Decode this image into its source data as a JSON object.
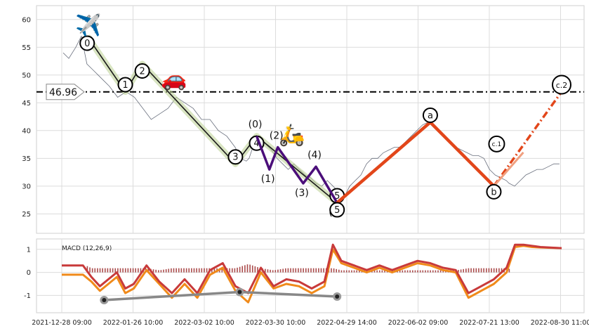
{
  "chart_data": [
    {
      "type": "line",
      "panel": "price",
      "x_ticks": [
        "2021-12-28 09:00",
        "2022-01-26 10:00",
        "2022-03-02 10:00",
        "2022-03-30 10:00",
        "2022-04-29 14:00",
        "2022-06-02 09:00",
        "2022-07-21 13:00",
        "2022-08-30 11:00"
      ],
      "y_ticks": [
        25,
        30,
        35,
        40,
        45,
        50,
        55,
        60
      ],
      "ylim": [
        21.5,
        62.5
      ],
      "grid": true,
      "price_series": {
        "segments": [
          {
            "x": [
              1,
              5,
              10,
              14,
              18,
              22,
              26,
              30,
              34,
              40,
              46,
              52,
              58,
              64,
              70,
              76,
              82,
              88,
              94,
              100,
              106,
              112,
              118,
              124,
              128,
              132,
              134,
              138,
              142,
              146,
              150,
              154,
              158,
              162,
              166,
              170,
              174,
              178,
              182,
              186,
              190,
              194,
              198,
              202,
              206,
              210,
              214,
              218,
              222,
              226,
              230,
              234,
              238,
              242,
              246,
              250,
              254,
              258,
              262,
              266,
              270,
              274,
              278,
              282,
              286,
              290,
              294,
              298,
              302,
              306,
              310,
              314,
              318,
              320,
              324,
              328,
              332,
              336,
              340,
              344,
              348,
              352,
              356
            ],
            "y": [
              54,
              53,
              55,
              57,
              52,
              51,
              50,
              49,
              48,
              46,
              47,
              46,
              44,
              42,
              43,
              44,
              46,
              45,
              44,
              42,
              42,
              40,
              39,
              37,
              35,
              34.5,
              35,
              38,
              39,
              37.5,
              36.5,
              35,
              34,
              33,
              34,
              33,
              32,
              31.5,
              30.5,
              30,
              31,
              30,
              29,
              28,
              30,
              31,
              32,
              34,
              35,
              35,
              36,
              36.5,
              37,
              37,
              38,
              39,
              40,
              41,
              41.5,
              41,
              40,
              39,
              38,
              37,
              36.5,
              36,
              35.5,
              35.5,
              35,
              33,
              32,
              31.5,
              31,
              30.5,
              30,
              31,
              32,
              32.5,
              33,
              33,
              33.5,
              34,
              34
            ]
          }
        ]
      },
      "horizontal_level": {
        "value": 46.96,
        "label": "46.96"
      },
      "waves": [
        {
          "name": "primary",
          "color": "#1a1a1a",
          "points": [
            [
              12,
              57
            ],
            [
              30,
              47
            ],
            [
              38,
              52
            ],
            [
              82,
              34
            ],
            [
              92,
              39
            ],
            [
              130,
              27
            ]
          ],
          "labels": [
            "0",
            "1",
            "2",
            "3",
            "4",
            "5"
          ]
        },
        {
          "name": "sub",
          "color": "#4b0e7a",
          "points": [
            [
              92,
              39
            ],
            [
              98,
              33
            ],
            [
              102,
              37
            ],
            [
              114,
              30.5
            ],
            [
              120,
              33.5
            ],
            [
              130,
              27
            ]
          ],
          "labels": [
            "(0)",
            "(1)",
            "(2)",
            "(3)",
            "(4)",
            "(5)"
          ]
        },
        {
          "name": "corrective",
          "color": "#e2461a",
          "points": [
            [
              130,
              27
            ],
            [
              174,
              41.5
            ],
            [
              204,
              30
            ],
            [
              236,
              47
            ]
          ],
          "labels": [
            "5",
            "a",
            "b",
            "c.2"
          ],
          "extra_labels": [
            "c.1"
          ]
        }
      ],
      "emoji_markers": [
        "✈️",
        "🚗",
        "🛵"
      ]
    },
    {
      "type": "line",
      "panel": "indicator",
      "title": "MACD (12,26,9)",
      "y_ticks": [
        -1,
        0,
        1
      ],
      "ylim": [
        -1.75,
        1.45
      ],
      "grid": true,
      "macd_line": {
        "x": [
          0,
          10,
          14,
          18,
          22,
          26,
          30,
          34,
          40,
          46,
          52,
          58,
          64,
          70,
          76,
          82,
          88,
          94,
          100,
          106,
          112,
          118,
          124,
          128,
          132,
          138,
          144,
          150,
          156,
          162,
          168,
          174,
          180,
          186,
          192,
          198,
          204,
          210,
          214,
          218,
          222,
          226,
          236
        ],
        "y": [
          0.3,
          0.3,
          -0.2,
          -0.6,
          -0.3,
          0.0,
          -0.7,
          -0.5,
          0.3,
          -0.4,
          -0.9,
          -0.3,
          -0.9,
          0.1,
          0.4,
          -0.6,
          -0.9,
          0.2,
          -0.6,
          -0.3,
          -0.4,
          -0.7,
          -0.4,
          1.2,
          0.5,
          0.3,
          0.1,
          0.3,
          0.1,
          0.3,
          0.5,
          0.4,
          0.2,
          0.1,
          -0.9,
          -0.6,
          -0.3,
          0.2,
          1.2,
          1.2,
          1.15,
          1.1,
          1.05
        ]
      },
      "signal_line": {
        "x": [
          0,
          10,
          14,
          18,
          22,
          26,
          30,
          34,
          40,
          46,
          52,
          58,
          64,
          70,
          76,
          82,
          88,
          94,
          100,
          106,
          112,
          118,
          124,
          128,
          132,
          138,
          144,
          150,
          156,
          162,
          168,
          174,
          180,
          186,
          192,
          198,
          204,
          210,
          214,
          218,
          222,
          226,
          236
        ],
        "y": [
          -0.1,
          -0.1,
          -0.4,
          -0.8,
          -0.5,
          -0.2,
          -0.9,
          -0.7,
          0.1,
          -0.5,
          -1.1,
          -0.5,
          -1.1,
          -0.1,
          0.2,
          -0.8,
          -1.3,
          0.0,
          -0.7,
          -0.5,
          -0.6,
          -0.9,
          -0.6,
          1.0,
          0.4,
          0.2,
          0.0,
          0.2,
          0.0,
          0.2,
          0.4,
          0.3,
          0.1,
          0.0,
          -1.1,
          -0.8,
          -0.5,
          0.0,
          1.1,
          1.15,
          1.1,
          1.08,
          1.05
        ]
      },
      "divergence_lines": [
        {
          "x": [
            20,
            84,
            130
          ],
          "y": [
            -1.2,
            -0.85,
            -1.05
          ],
          "markers": true
        }
      ]
    }
  ]
}
